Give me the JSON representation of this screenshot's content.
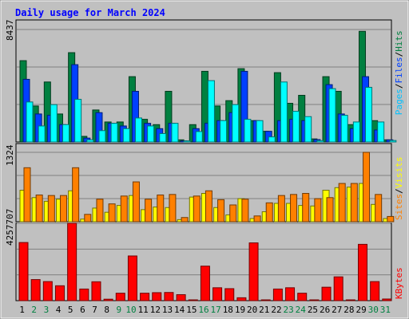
{
  "chart_data": [
    {
      "type": "bar",
      "title": "Daily usage for March 2024",
      "ylabel_max": "8437",
      "legend": [
        {
          "label": "Pages",
          "color": "#00c0ff"
        },
        {
          "label": "Files",
          "color": "#0040ff"
        },
        {
          "label": "Hits",
          "color": "#008040"
        }
      ],
      "ylim": [
        0,
        8437
      ],
      "categories": [
        "1",
        "2",
        "3",
        "4",
        "5",
        "6",
        "7",
        "8",
        "9",
        "10",
        "11",
        "12",
        "13",
        "14",
        "15",
        "16",
        "17",
        "18",
        "19",
        "20",
        "21",
        "22",
        "23",
        "24",
        "25",
        "26",
        "27",
        "28",
        "29",
        "30",
        "31"
      ],
      "series": [
        {
          "name": "Hits",
          "color": "#008040",
          "values": [
            6100,
            2700,
            4500,
            2100,
            6700,
            420,
            2400,
            1500,
            1500,
            4900,
            1700,
            1300,
            3800,
            160,
            1300,
            5300,
            2700,
            3100,
            5500,
            1600,
            800,
            5200,
            2900,
            3500,
            230,
            4900,
            3800,
            1300,
            8300,
            1600,
            160
          ]
        },
        {
          "name": "Files",
          "color": "#0040ff",
          "values": [
            4700,
            2100,
            2000,
            1300,
            5800,
            290,
            2200,
            1400,
            1200,
            3800,
            1400,
            1000,
            1400,
            80,
            1000,
            1400,
            1600,
            2200,
            5300,
            1600,
            800,
            1600,
            1700,
            1600,
            180,
            4300,
            2100,
            1000,
            4900,
            900,
            160
          ]
        },
        {
          "name": "Pages",
          "color": "#00ffff",
          "values": [
            3000,
            1200,
            2800,
            1300,
            3200,
            160,
            850,
            1400,
            1000,
            1800,
            1200,
            630,
            1400,
            80,
            780,
            4600,
            1600,
            2800,
            1700,
            1600,
            380,
            4500,
            2300,
            1900,
            100,
            4000,
            2000,
            1500,
            4100,
            1500,
            110
          ]
        }
      ]
    },
    {
      "type": "bar",
      "ylabel_max": "1324",
      "legend": [
        {
          "label": "Sites",
          "color": "#ff8000"
        },
        {
          "label": "Visits",
          "color": "#ffff00"
        }
      ],
      "ylim": [
        0,
        1324
      ],
      "categories": [
        "1",
        "2",
        "3",
        "4",
        "5",
        "6",
        "7",
        "8",
        "9",
        "10",
        "11",
        "12",
        "13",
        "14",
        "15",
        "16",
        "17",
        "18",
        "19",
        "20",
        "21",
        "22",
        "23",
        "24",
        "25",
        "26",
        "27",
        "28",
        "29",
        "30",
        "31"
      ],
      "series": [
        {
          "name": "Visits",
          "color": "#ffff00",
          "values": [
            600,
            460,
            390,
            430,
            590,
            50,
            260,
            180,
            310,
            500,
            230,
            280,
            270,
            40,
            470,
            540,
            270,
            130,
            440,
            60,
            190,
            350,
            350,
            310,
            300,
            600,
            650,
            660,
            730,
            330,
            60
          ]
        },
        {
          "name": "Sites",
          "color": "#ff8000",
          "values": [
            1030,
            510,
            500,
            500,
            1030,
            140,
            430,
            340,
            490,
            760,
            430,
            510,
            520,
            80,
            490,
            590,
            420,
            320,
            430,
            110,
            360,
            500,
            520,
            540,
            440,
            460,
            730,
            730,
            1324,
            520,
            100
          ]
        }
      ]
    },
    {
      "type": "bar",
      "ylabel_max": "4257707",
      "legend": [
        {
          "label": "KBytes",
          "color": "#ff0000"
        }
      ],
      "ylim": [
        0,
        4257707
      ],
      "categories": [
        "1",
        "2",
        "3",
        "4",
        "5",
        "6",
        "7",
        "8",
        "9",
        "10",
        "11",
        "12",
        "13",
        "14",
        "15",
        "16",
        "17",
        "18",
        "19",
        "20",
        "21",
        "22",
        "23",
        "24",
        "25",
        "26",
        "27",
        "28",
        "29",
        "30",
        "31"
      ],
      "series": [
        {
          "name": "KBytes",
          "color": "#ff0000",
          "values": [
            3200000,
            1160000,
            1050000,
            820000,
            4257707,
            640000,
            1040000,
            80000,
            410000,
            2460000,
            410000,
            440000,
            450000,
            330000,
            40000,
            1900000,
            710000,
            660000,
            160000,
            3180000,
            20000,
            640000,
            710000,
            410000,
            30000,
            740000,
            1310000,
            40000,
            3100000,
            1050000,
            90000
          ]
        }
      ]
    }
  ],
  "x_label_colors": {
    "weekday": "#000000",
    "weekend": "#008040"
  },
  "weekend_days": [
    "2",
    "3",
    "9",
    "10",
    "16",
    "17",
    "23",
    "24",
    "30",
    "31"
  ]
}
